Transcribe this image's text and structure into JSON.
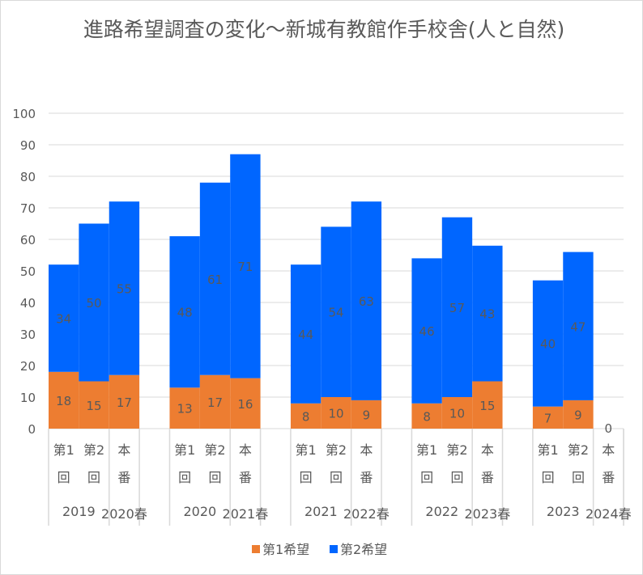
{
  "chart_data": {
    "type": "bar",
    "stacked": true,
    "title": "進路希望調査の変化～新城有教館作手校舎(人と自然)",
    "ylim": [
      0,
      100
    ],
    "yticks": [
      0,
      10,
      20,
      30,
      40,
      50,
      60,
      70,
      80,
      90,
      100
    ],
    "grid": true,
    "legend_position": "bottom",
    "groups": [
      {
        "year": "2019",
        "spring": "2020春"
      },
      {
        "year": "2020",
        "spring": "2021春"
      },
      {
        "year": "2021",
        "spring": "2022春"
      },
      {
        "year": "2022",
        "spring": "2023春"
      },
      {
        "year": "2023",
        "spring": "2024春"
      }
    ],
    "category_labels": [
      [
        "第1",
        "回"
      ],
      [
        "第2",
        "回"
      ],
      [
        "本",
        "番"
      ]
    ],
    "series": [
      {
        "name": "第1希望",
        "color": "#ed7d31",
        "values": [
          [
            18,
            15,
            17
          ],
          [
            13,
            17,
            16
          ],
          [
            8,
            10,
            9
          ],
          [
            8,
            10,
            15
          ],
          [
            7,
            9,
            0
          ]
        ]
      },
      {
        "name": "第2希望",
        "color": "#0066ff",
        "values": [
          [
            34,
            50,
            55
          ],
          [
            48,
            61,
            71
          ],
          [
            44,
            54,
            63
          ],
          [
            46,
            57,
            43
          ],
          [
            40,
            47,
            0
          ]
        ]
      }
    ]
  }
}
